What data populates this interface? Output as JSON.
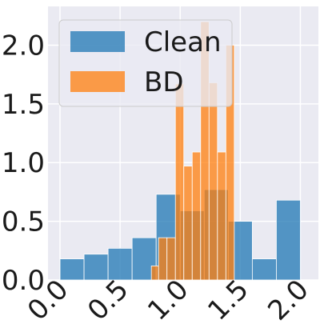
{
  "chart_data": {
    "type": "bar",
    "title": "",
    "xlabel": "",
    "ylabel": "",
    "xlim": [
      -0.1,
      2.15
    ],
    "ylim": [
      0,
      2.33
    ],
    "xticks": [
      0.0,
      0.5,
      1.0,
      1.5,
      2.0
    ],
    "xtick_labels": [
      "0.0",
      "0.5",
      "1.0",
      "1.5",
      "2.0"
    ],
    "yticks": [
      0.0,
      0.5,
      1.0,
      1.5,
      2.0
    ],
    "ytick_labels": [
      "0.0",
      "0.5",
      "1.0",
      "1.5",
      "2.0"
    ],
    "grid": true,
    "legend_position": "top-left",
    "series": [
      {
        "name": "Clean",
        "color": "#1f77b4",
        "bins": [
          {
            "x0": 0.0,
            "x1": 0.2,
            "value": 0.18
          },
          {
            "x0": 0.2,
            "x1": 0.4,
            "value": 0.22
          },
          {
            "x0": 0.4,
            "x1": 0.6,
            "value": 0.27
          },
          {
            "x0": 0.6,
            "x1": 0.8,
            "value": 0.36
          },
          {
            "x0": 0.8,
            "x1": 1.0,
            "value": 0.73
          },
          {
            "x0": 1.0,
            "x1": 1.2,
            "value": 0.59
          },
          {
            "x0": 1.2,
            "x1": 1.4,
            "value": 0.77
          },
          {
            "x0": 1.4,
            "x1": 1.6,
            "value": 0.5
          },
          {
            "x0": 1.6,
            "x1": 1.8,
            "value": 0.18
          },
          {
            "x0": 1.8,
            "x1": 2.0,
            "value": 0.68
          }
        ]
      },
      {
        "name": "BD",
        "color": "#ff7f0e",
        "bins": [
          {
            "x0": 0.76,
            "x1": 0.82,
            "value": 0.12
          },
          {
            "x0": 0.82,
            "x1": 0.89,
            "value": 0.36
          },
          {
            "x0": 0.89,
            "x1": 0.96,
            "value": 0.36
          },
          {
            "x0": 0.96,
            "x1": 1.03,
            "value": 1.67
          },
          {
            "x0": 1.03,
            "x1": 1.1,
            "value": 0.97
          },
          {
            "x0": 1.1,
            "x1": 1.17,
            "value": 1.09
          },
          {
            "x0": 1.17,
            "x1": 1.24,
            "value": 2.2
          },
          {
            "x0": 1.24,
            "x1": 1.31,
            "value": 1.68
          },
          {
            "x0": 1.31,
            "x1": 1.38,
            "value": 1.09
          },
          {
            "x0": 1.38,
            "x1": 1.45,
            "value": 2.0
          }
        ]
      }
    ]
  },
  "legend": [
    {
      "label": "Clean",
      "color": "#1f77b4"
    },
    {
      "label": "BD",
      "color": "#ff7f0e"
    }
  ],
  "colors": {
    "plot_background": "#eaeaf2",
    "grid": "#ffffff",
    "bar_edge": "#ffffff",
    "legend_background": "#eaeaf2",
    "legend_border": "#cccccc"
  }
}
